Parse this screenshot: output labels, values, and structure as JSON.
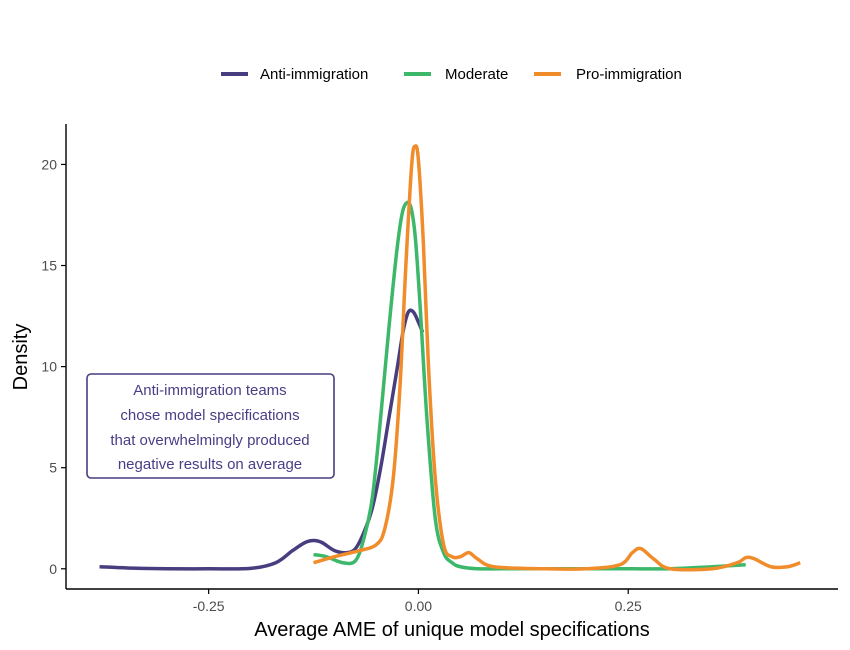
{
  "chart_data": {
    "type": "line",
    "title": "",
    "xlabel": "Average AME of unique model specifications",
    "ylabel": "Density",
    "xlim": [
      -0.42,
      0.5
    ],
    "ylim": [
      -1.0,
      22.0
    ],
    "x_ticks": [
      -0.25,
      0.0,
      0.25
    ],
    "x_tick_labels": [
      "-0.25",
      "0.00",
      "0.25"
    ],
    "y_ticks": [
      0,
      5,
      10,
      15,
      20
    ],
    "y_tick_labels": [
      "0",
      "5",
      "10",
      "15",
      "20"
    ],
    "grid": false,
    "legend_position": "top",
    "series": [
      {
        "name": "Anti-immigration",
        "color": "#483d7f",
        "x": [
          -0.38,
          -0.34,
          -0.3,
          -0.25,
          -0.2,
          -0.17,
          -0.15,
          -0.135,
          -0.125,
          -0.115,
          -0.1,
          -0.085,
          -0.075,
          -0.065,
          -0.055,
          -0.045,
          -0.035,
          -0.025,
          -0.018,
          -0.012,
          -0.006,
          0.0,
          0.005
        ],
        "y": [
          0.1,
          0.03,
          0.0,
          0.0,
          0.02,
          0.3,
          0.9,
          1.3,
          1.4,
          1.3,
          0.9,
          0.8,
          1.0,
          1.8,
          3.0,
          5.0,
          7.5,
          10.0,
          11.8,
          12.7,
          12.7,
          12.2,
          11.7
        ]
      },
      {
        "name": "Moderate",
        "color": "#3db86b",
        "x": [
          -0.125,
          -0.11,
          -0.09,
          -0.075,
          -0.065,
          -0.055,
          -0.045,
          -0.035,
          -0.025,
          -0.018,
          -0.01,
          -0.004,
          0.002,
          0.01,
          0.02,
          0.03,
          0.04,
          0.05,
          0.07,
          0.1,
          0.15,
          0.2,
          0.25,
          0.3,
          0.35,
          0.39
        ],
        "y": [
          0.7,
          0.6,
          0.3,
          0.4,
          1.5,
          3.5,
          7.5,
          12.0,
          16.0,
          17.8,
          18.0,
          16.5,
          13.0,
          7.5,
          2.5,
          0.8,
          0.3,
          0.1,
          0.0,
          0.0,
          0.0,
          0.0,
          0.0,
          0.0,
          0.1,
          0.2
        ]
      },
      {
        "name": "Pro-immigration",
        "color": "#f08c2a",
        "x": [
          -0.125,
          -0.1,
          -0.07,
          -0.05,
          -0.04,
          -0.03,
          -0.022,
          -0.015,
          -0.008,
          -0.004,
          0.0,
          0.006,
          0.012,
          0.02,
          0.03,
          0.04,
          0.05,
          0.06,
          0.07,
          0.09,
          0.15,
          0.2,
          0.24,
          0.255,
          0.265,
          0.28,
          0.3,
          0.35,
          0.38,
          0.39,
          0.4,
          0.42,
          0.44,
          0.455
        ],
        "y": [
          0.3,
          0.6,
          0.9,
          1.2,
          2.0,
          4.5,
          9.0,
          15.0,
          20.0,
          20.9,
          20.2,
          16.0,
          10.0,
          4.5,
          1.2,
          0.6,
          0.6,
          0.8,
          0.5,
          0.1,
          0.0,
          0.0,
          0.2,
          0.8,
          1.0,
          0.5,
          0.0,
          0.0,
          0.3,
          0.55,
          0.5,
          0.1,
          0.1,
          0.3
        ]
      }
    ],
    "annotation": {
      "lines": [
        "Anti-immigration teams",
        "chose model specifications",
        "that overwhelmingly produced",
        "negative results on average"
      ],
      "color": "#483d7f"
    }
  }
}
